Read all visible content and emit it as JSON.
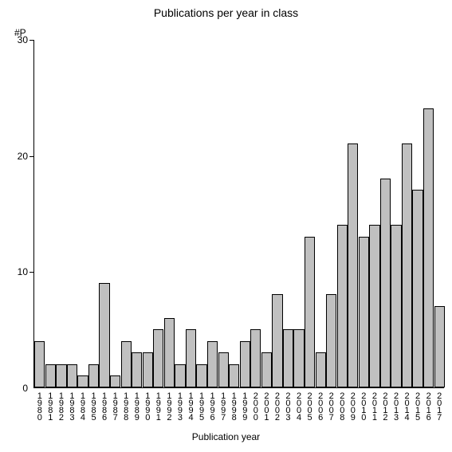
{
  "chart": {
    "type": "bar",
    "title": "Publications per year in class",
    "title_fontsize": 14,
    "xlabel": "Publication year",
    "ylabel": "#P",
    "label_fontsize": 12,
    "background_color": "#ffffff",
    "bar_color": "#c0c0c0",
    "bar_border_color": "#000000",
    "axis_color": "#000000",
    "text_color": "#000000",
    "ylim": [
      0,
      30
    ],
    "ytick_step": 10,
    "yticks": [
      0,
      10,
      20,
      30
    ],
    "tick_fontsize": 12,
    "categories": [
      "1980",
      "1981",
      "1982",
      "1983",
      "1984",
      "1985",
      "1986",
      "1987",
      "1988",
      "1989",
      "1990",
      "1991",
      "1992",
      "1993",
      "1994",
      "1995",
      "1996",
      "1997",
      "1998",
      "1999",
      "2000",
      "2001",
      "2002",
      "2003",
      "2004",
      "2005",
      "2006",
      "2007",
      "2008",
      "2009",
      "2010",
      "2011",
      "2012",
      "2013",
      "2014",
      "2015",
      "2016",
      "2017"
    ],
    "values": [
      4,
      2,
      2,
      2,
      1,
      2,
      9,
      1,
      4,
      3,
      3,
      5,
      6,
      2,
      5,
      2,
      4,
      3,
      2,
      4,
      5,
      3,
      8,
      5,
      5,
      13,
      3,
      8,
      14,
      21,
      13,
      14,
      18,
      14,
      21,
      17,
      24,
      7
    ],
    "bar_width_ratio": 0.98,
    "xlabel_fontsize": 12,
    "xtick_fontsize": 11
  }
}
